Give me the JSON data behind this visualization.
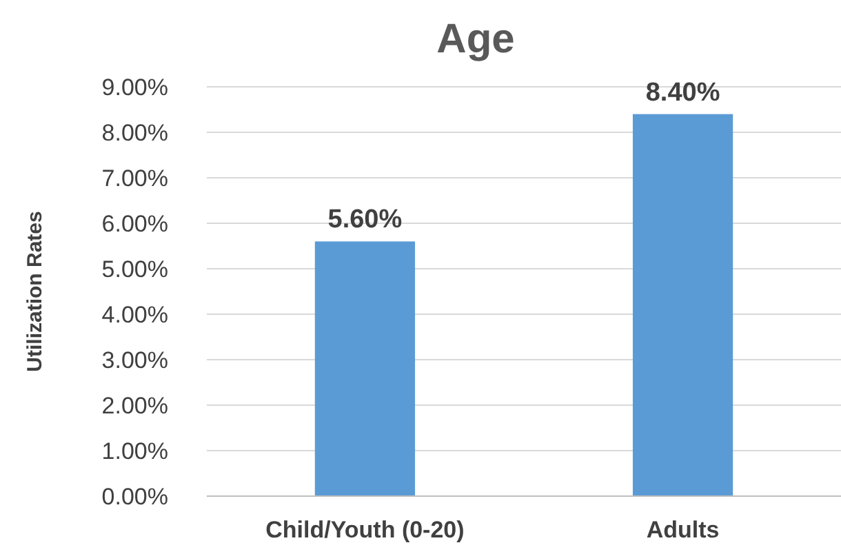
{
  "chart_data": {
    "type": "bar",
    "title": "Age",
    "ylabel": "Utilization Rates",
    "categories": [
      "Child/Youth (0-20)",
      "Adults"
    ],
    "values": [
      5.6,
      8.4
    ],
    "color": "#5b9bd5",
    "value_labels": [
      "5.60%",
      "8.40%"
    ],
    "ylim": [
      0,
      9
    ],
    "yticks": [
      {
        "value": 0,
        "label": "0.00%"
      },
      {
        "value": 1,
        "label": "1.00%"
      },
      {
        "value": 2,
        "label": "2.00%"
      },
      {
        "value": 3,
        "label": "3.00%"
      },
      {
        "value": 4,
        "label": "4.00%"
      },
      {
        "value": 5,
        "label": "5.00%"
      },
      {
        "value": 6,
        "label": "6.00%"
      },
      {
        "value": 7,
        "label": "7.00%"
      },
      {
        "value": 8,
        "label": "8.00%"
      },
      {
        "value": 9,
        "label": "9.00%"
      }
    ],
    "grid": "y"
  }
}
